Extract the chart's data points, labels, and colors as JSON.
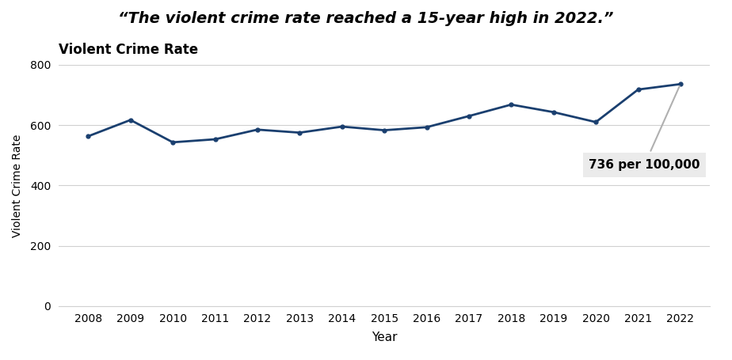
{
  "years": [
    2008,
    2009,
    2010,
    2011,
    2012,
    2013,
    2014,
    2015,
    2016,
    2017,
    2018,
    2019,
    2020,
    2021,
    2022
  ],
  "values": [
    563,
    617,
    543,
    553,
    585,
    575,
    595,
    583,
    593,
    630,
    668,
    643,
    610,
    718,
    736
  ],
  "line_color": "#1a3f6f",
  "title": "“The violent crime rate reached a 15-year high in 2022.”",
  "subtitle": "Violent Crime Rate",
  "ylabel": "Violent Crime Rate",
  "xlabel": "Year",
  "ylim": [
    0,
    800
  ],
  "yticks": [
    0,
    200,
    400,
    600,
    800
  ],
  "annotation_text": "736 per 100,000",
  "background_color": "#ffffff",
  "grid_color": "#d0d0d0",
  "annotation_box_color": "#ebebeb"
}
